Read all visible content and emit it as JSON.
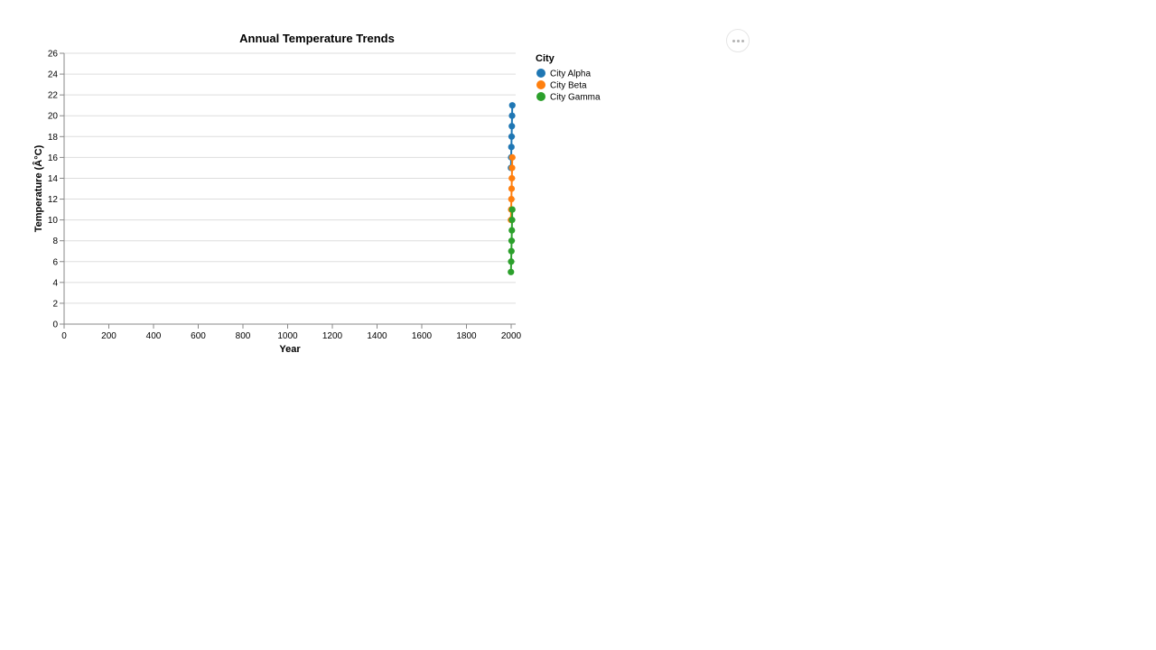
{
  "chart_data": {
    "type": "line",
    "title": "Annual Temperature Trends",
    "xlabel": "Year",
    "ylabel": "Temperature (Â°C)",
    "xlim": [
      0,
      2000
    ],
    "ylim": [
      0,
      26
    ],
    "x_ticks": [
      "0",
      "200",
      "400",
      "600",
      "800",
      "1000",
      "1200",
      "1400",
      "1600",
      "1800",
      "2000"
    ],
    "y_ticks": [
      "0",
      "2",
      "4",
      "6",
      "8",
      "10",
      "12",
      "14",
      "16",
      "18",
      "20",
      "22",
      "24",
      "26"
    ],
    "grid": true,
    "legend_title": "City",
    "legend_position": "right",
    "x": [
      1999,
      2000,
      2001,
      2002,
      2003,
      2004,
      2005
    ],
    "series": [
      {
        "name": "City Alpha",
        "color": "#1f77b4",
        "values": [
          15,
          16,
          17,
          18,
          19,
          20,
          21
        ]
      },
      {
        "name": "City Beta",
        "color": "#ff7f0e",
        "values": [
          10,
          11,
          12,
          13,
          14,
          15,
          16
        ]
      },
      {
        "name": "City Gamma",
        "color": "#2ca02c",
        "values": [
          5,
          6,
          7,
          8,
          9,
          10,
          11
        ]
      }
    ]
  },
  "actions_menu": {
    "icon": "ellipsis-icon"
  }
}
